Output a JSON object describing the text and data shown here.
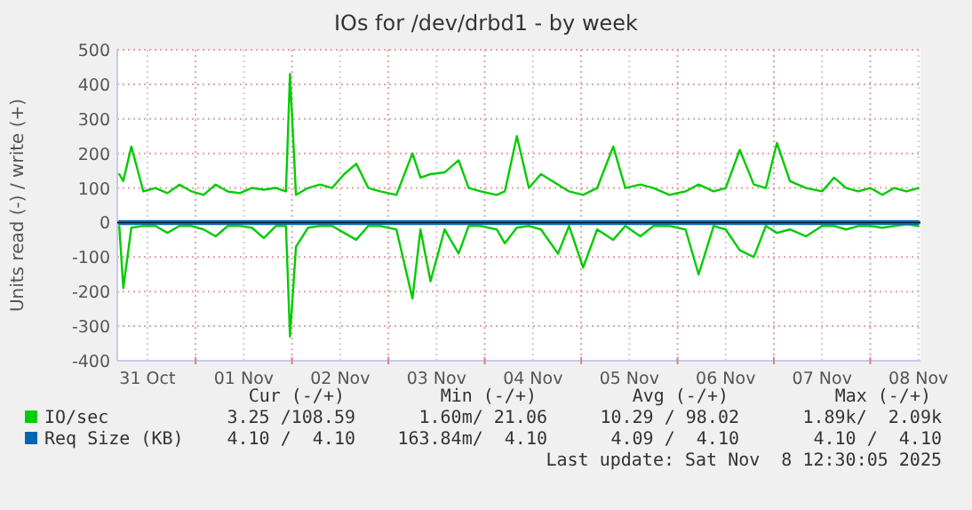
{
  "chart_data": {
    "type": "line",
    "title": "IOs for /dev/drbd1 - by week",
    "ylabel": "Units read (-) / write (+)",
    "x": [
      "2025-10-31T05:00",
      "2025-10-31T06:00",
      "2025-10-31T08:00",
      "2025-10-31T11:00",
      "2025-10-31T14:00",
      "2025-10-31T17:00",
      "2025-10-31T20:00",
      "2025-10-31T23:00",
      "2025-11-01T02:00",
      "2025-11-01T05:00",
      "2025-11-01T08:00",
      "2025-11-01T11:00",
      "2025-11-01T14:00",
      "2025-11-01T17:00",
      "2025-11-01T20:00",
      "2025-11-01T22:30",
      "2025-11-01T23:30",
      "2025-11-02T01:00",
      "2025-11-02T04:00",
      "2025-11-02T07:00",
      "2025-11-02T10:00",
      "2025-11-02T13:00",
      "2025-11-02T16:00",
      "2025-11-02T19:00",
      "2025-11-02T22:00",
      "2025-11-03T02:00",
      "2025-11-03T06:00",
      "2025-11-03T08:00",
      "2025-11-03T10:30",
      "2025-11-03T14:00",
      "2025-11-03T17:30",
      "2025-11-03T20:00",
      "2025-11-03T23:00",
      "2025-11-04T03:00",
      "2025-11-04T05:00",
      "2025-11-04T08:00",
      "2025-11-04T11:00",
      "2025-11-04T14:00",
      "2025-11-04T18:15",
      "2025-11-04T21:00",
      "2025-11-05T00:30",
      "2025-11-05T04:00",
      "2025-11-05T08:00",
      "2025-11-05T11:00",
      "2025-11-05T14:45",
      "2025-11-05T18:00",
      "2025-11-05T22:00",
      "2025-11-06T02:00",
      "2025-11-06T05:15",
      "2025-11-06T09:00",
      "2025-11-06T12:00",
      "2025-11-06T15:30",
      "2025-11-06T19:00",
      "2025-11-06T22:00",
      "2025-11-07T00:45",
      "2025-11-07T04:00",
      "2025-11-07T08:00",
      "2025-11-07T12:00",
      "2025-11-07T15:00",
      "2025-11-07T18:00",
      "2025-11-07T21:00",
      "2025-11-08T00:00",
      "2025-11-08T03:00",
      "2025-11-08T06:00",
      "2025-11-08T09:00",
      "2025-11-08T12:00"
    ],
    "series": [
      {
        "name": "IO/sec",
        "color": "#00cc00",
        "values": [
          140,
          120,
          220,
          90,
          100,
          85,
          110,
          90,
          80,
          110,
          90,
          85,
          100,
          95,
          100,
          90,
          430,
          80,
          100,
          110,
          100,
          140,
          170,
          100,
          90,
          80,
          200,
          130,
          140,
          145,
          180,
          100,
          90,
          80,
          90,
          250,
          100,
          140,
          110,
          90,
          80,
          100,
          220,
          100,
          110,
          100,
          80,
          90,
          110,
          90,
          100,
          210,
          110,
          100,
          230,
          120,
          100,
          90,
          130,
          100,
          90,
          100,
          80,
          100,
          90,
          100
        ]
      },
      {
        "color": "#00cc00",
        "values": [
          -10,
          -190,
          -15,
          -10,
          -10,
          -30,
          -10,
          -10,
          -20,
          -40,
          -10,
          -10,
          -15,
          -45,
          -10,
          -10,
          -330,
          -70,
          -15,
          -10,
          -10,
          -30,
          -50,
          -10,
          -10,
          -20,
          -220,
          -20,
          -170,
          -20,
          -90,
          -10,
          -10,
          -20,
          -60,
          -15,
          -10,
          -20,
          -90,
          -10,
          -130,
          -20,
          -50,
          -10,
          -40,
          -10,
          -10,
          -20,
          -150,
          -10,
          -20,
          -80,
          -100,
          -10,
          -30,
          -20,
          -40,
          -10,
          -10,
          -20,
          -10,
          -10,
          -15,
          -10,
          -5,
          -10
        ]
      },
      {
        "name": "Req Size (KB)",
        "color": "#0066b3",
        "x": [
          "2025-10-31T05:00",
          "2025-11-08T12:00"
        ],
        "values": [
          4.1,
          4.1
        ]
      },
      {
        "color": "#0066b3",
        "x": [
          "2025-10-31T05:00",
          "2025-11-08T12:00"
        ],
        "values": [
          -4.1,
          -4.1
        ]
      }
    ],
    "xlim": [
      "2025-10-31T04:30",
      "2025-11-08T12:30"
    ],
    "xticks": [
      {
        "value": "2025-10-31T12:00",
        "label": "31 Oct"
      },
      {
        "value": "2025-11-01T00:00",
        "label": null
      },
      {
        "value": "2025-11-01T12:00",
        "label": "01 Nov"
      },
      {
        "value": "2025-11-02T00:00",
        "label": null
      },
      {
        "value": "2025-11-02T12:00",
        "label": "02 Nov"
      },
      {
        "value": "2025-11-03T00:00",
        "label": null
      },
      {
        "value": "2025-11-03T12:00",
        "label": "03 Nov"
      },
      {
        "value": "2025-11-04T00:00",
        "label": null
      },
      {
        "value": "2025-11-04T12:00",
        "label": "04 Nov"
      },
      {
        "value": "2025-11-05T00:00",
        "label": null
      },
      {
        "value": "2025-11-05T12:00",
        "label": "05 Nov"
      },
      {
        "value": "2025-11-06T00:00",
        "label": null
      },
      {
        "value": "2025-11-06T12:00",
        "label": "06 Nov"
      },
      {
        "value": "2025-11-07T00:00",
        "label": null
      },
      {
        "value": "2025-11-07T12:00",
        "label": "07 Nov"
      },
      {
        "value": "2025-11-08T00:00",
        "label": null
      },
      {
        "value": "2025-11-08T12:00",
        "label": "08 Nov"
      }
    ],
    "ylim": [
      -400,
      500
    ],
    "yticks": [
      -400,
      -300,
      -200,
      -100,
      0,
      100,
      200,
      300,
      400,
      500
    ],
    "grid": true,
    "legend": "bottom",
    "annotations": [
      "Cur (-/+)",
      "Min (-/+)",
      "Avg (-/+)",
      "Max (-/+)",
      "3.25 /108.59",
      "1.60m/ 21.06",
      "10.29 / 98.02",
      "1.89k/  2.09k",
      "4.10 /  4.10",
      "163.84m/  4.10",
      "4.09 /  4.10",
      "4.10 /  4.10",
      "Last update: Sat Nov  8 12:30:05 2025"
    ]
  }
}
